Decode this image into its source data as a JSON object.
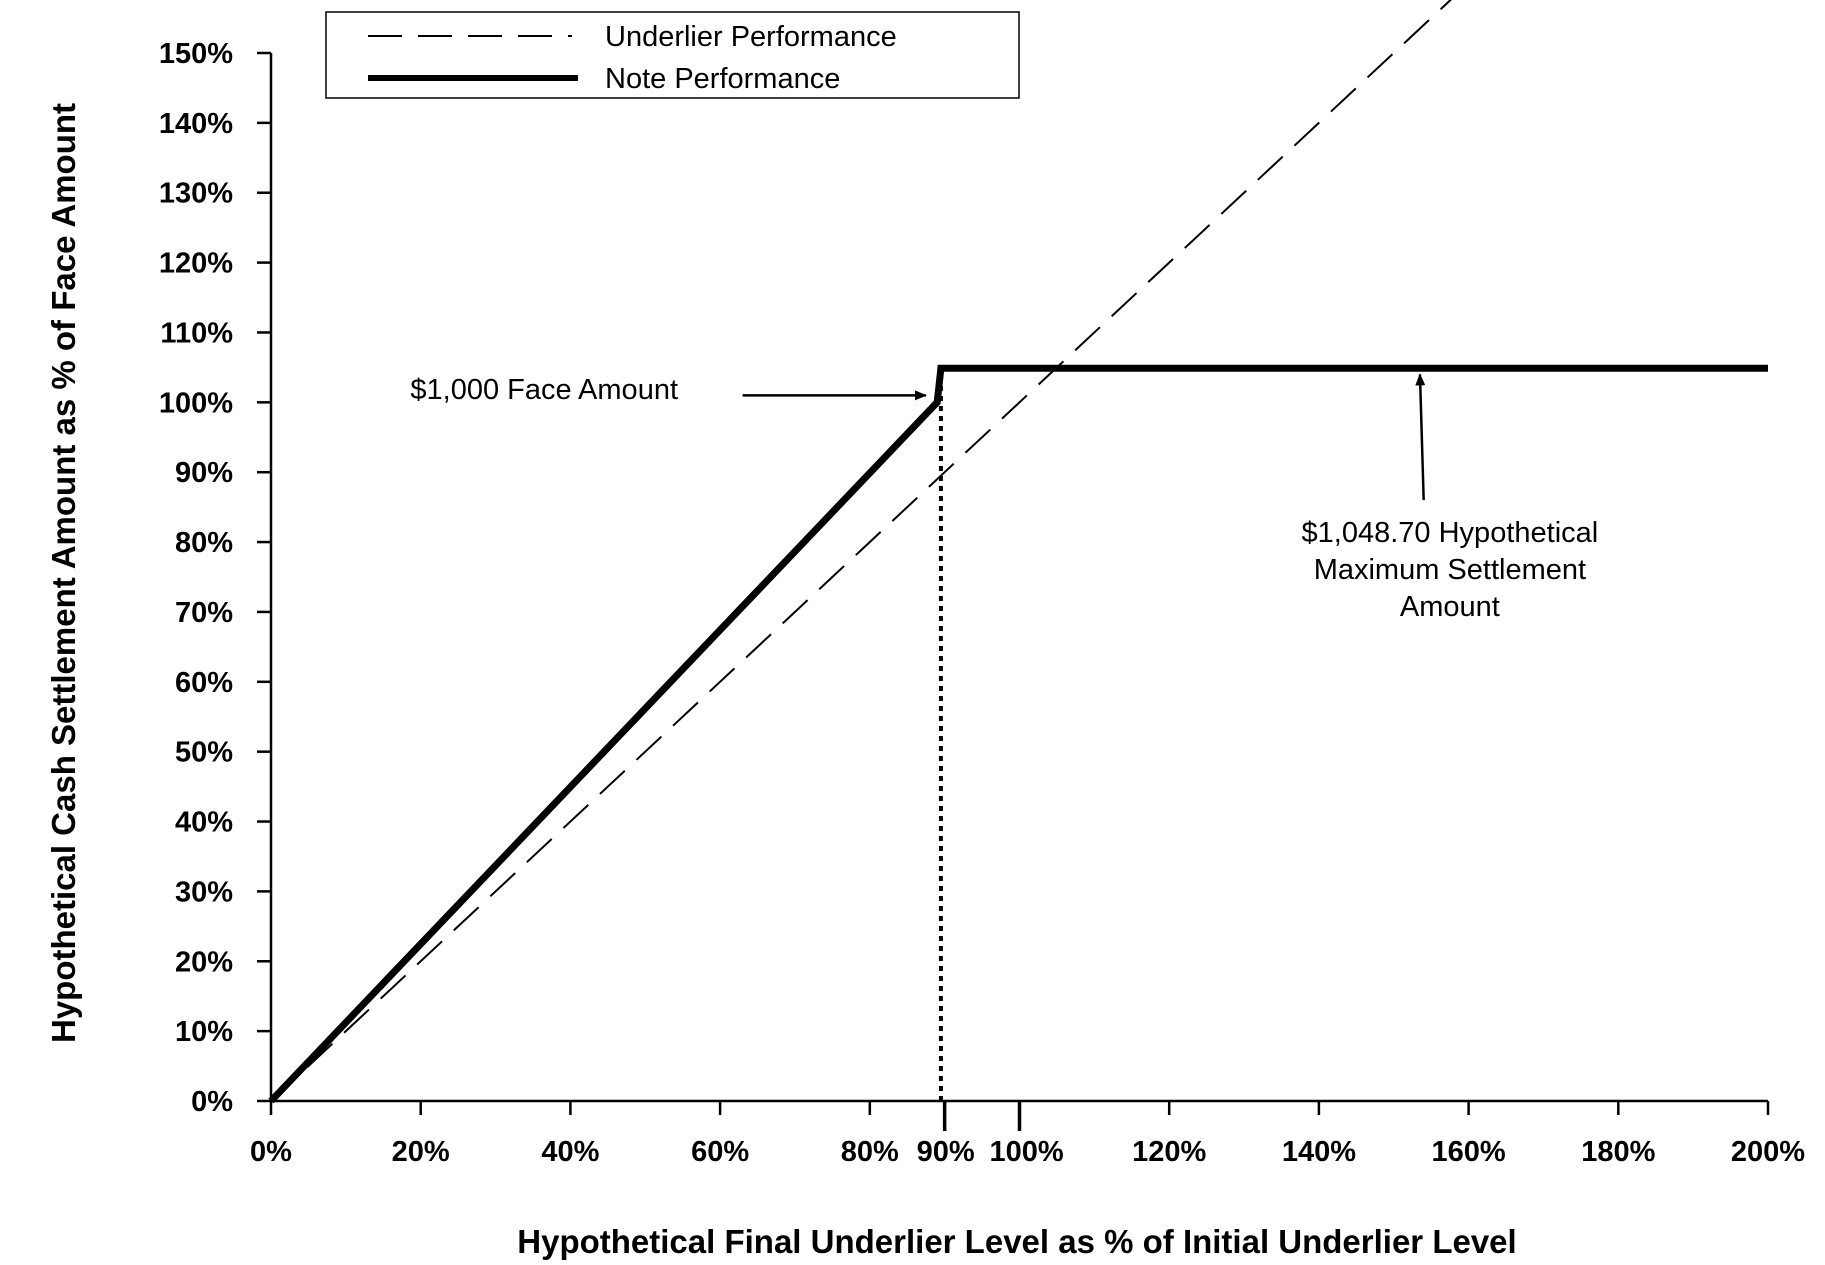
{
  "chart_data": {
    "type": "line",
    "xlabel": "Hypothetical Final Underlier Level as % of Initial Underlier Level",
    "ylabel": "Hypothetical Cash Settlement Amount as % of Face Amount",
    "xlim": [
      0,
      200
    ],
    "ylim": [
      0,
      150
    ],
    "x_ticks": [
      0,
      20,
      40,
      60,
      80,
      90,
      100,
      120,
      140,
      160,
      180,
      200
    ],
    "x_tick_labels": [
      "0%",
      "20%",
      "40%",
      "60%",
      "80%",
      "90%",
      "100%",
      "120%",
      "140%",
      "160%",
      "180%",
      "200%"
    ],
    "y_ticks": [
      0,
      10,
      20,
      30,
      40,
      50,
      60,
      70,
      80,
      90,
      100,
      110,
      120,
      130,
      140,
      150
    ],
    "y_tick_labels": [
      "0%",
      "10%",
      "20%",
      "30%",
      "40%",
      "50%",
      "60%",
      "70%",
      "80%",
      "90%",
      "100%",
      "110%",
      "120%",
      "130%",
      "140%",
      "150%"
    ],
    "grid": false,
    "legend": {
      "position": "top-left",
      "entries": [
        "Underlier Performance",
        "Note Performance"
      ]
    },
    "series": [
      {
        "name": "Underlier Performance",
        "style": "dashed",
        "color": "#000000",
        "x": [
          0,
          159
        ],
        "y": [
          0,
          159
        ]
      },
      {
        "name": "Note Performance",
        "style": "solid-thick",
        "color": "#000000",
        "x": [
          0,
          89,
          89.5,
          200
        ],
        "y": [
          0,
          100,
          104.87,
          104.87
        ]
      }
    ],
    "reference_lines": [
      {
        "type": "vertical-dotted",
        "x": 89.5,
        "y_range": [
          0,
          104.87
        ]
      }
    ],
    "annotations": [
      {
        "text": "$1,000 Face Amount",
        "label_at": [
          36.5,
          100.5
        ],
        "arrow_from": [
          63,
          101
        ],
        "arrow_to": [
          87.5,
          101
        ]
      },
      {
        "lines": [
          "$1,048.70 Hypothetical",
          "Maximum Settlement",
          "Amount"
        ],
        "label_at": [
          157.5,
          80
        ],
        "arrow_from": [
          154,
          86
        ],
        "arrow_to": [
          153.5,
          104
        ]
      }
    ]
  }
}
